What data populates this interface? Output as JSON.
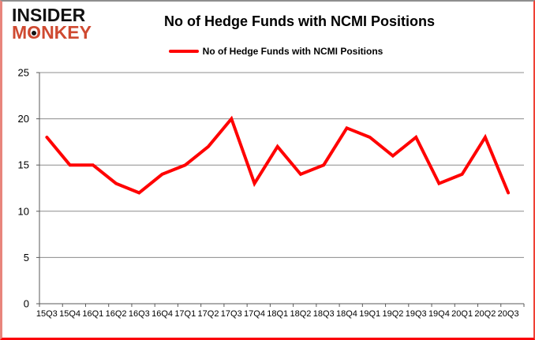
{
  "logo": {
    "line1": "INSIDER",
    "line2": "MONKEY",
    "text_color": "#111111",
    "accent_color": "#cf4a31"
  },
  "header": {
    "title": "No of Hedge Funds with NCMI Positions"
  },
  "legend": {
    "label": "No of Hedge Funds with NCMI Positions",
    "marker_color": "#ff0000"
  },
  "chart_data": {
    "type": "line",
    "title": "No of Hedge Funds with NCMI Positions",
    "categories": [
      "15Q3",
      "15Q4",
      "16Q1",
      "16Q2",
      "16Q3",
      "16Q4",
      "17Q1",
      "17Q2",
      "17Q3",
      "17Q4",
      "18Q1",
      "18Q2",
      "18Q3",
      "18Q4",
      "19Q1",
      "19Q2",
      "19Q3",
      "19Q4",
      "20Q1",
      "20Q2",
      "20Q3"
    ],
    "series": [
      {
        "name": "No of Hedge Funds with NCMI Positions",
        "values": [
          18,
          15,
          15,
          13,
          12,
          14,
          15,
          17,
          20,
          13,
          17,
          14,
          15,
          19,
          18,
          16,
          18,
          13,
          14,
          18,
          12
        ],
        "color": "#ff0000"
      }
    ],
    "xlabel": "",
    "ylabel": "",
    "ylim": [
      0,
      25
    ],
    "yticks": [
      0,
      5,
      10,
      15,
      20,
      25
    ],
    "ytick_step": 5,
    "grid": "horizontal",
    "gridline_color": "#8c8c8c",
    "axis_color": "#595959",
    "legend_position": "top"
  }
}
